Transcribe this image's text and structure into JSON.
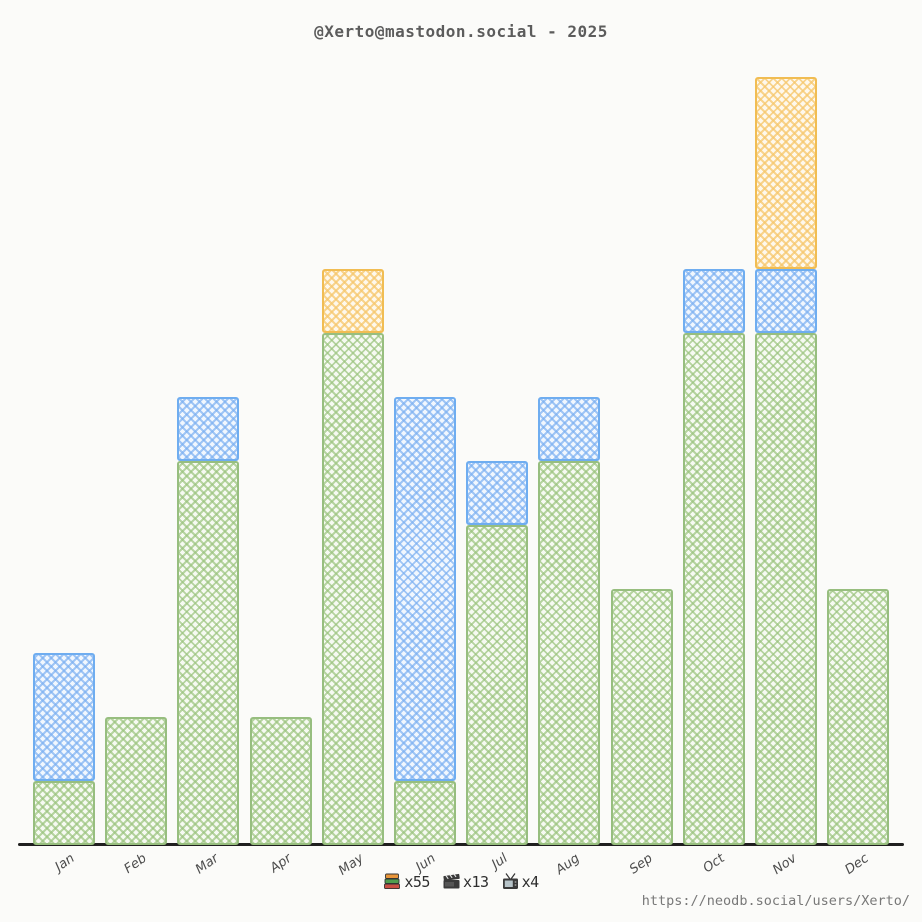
{
  "title": "@Xerto@mastodon.social - 2025",
  "footer": {
    "url": "https://neodb.social/users/Xerto/"
  },
  "legend": {
    "items": [
      {
        "icon": "books-icon",
        "label": "x55"
      },
      {
        "icon": "movie-icon",
        "label": "x13"
      },
      {
        "icon": "tv-icon",
        "label": "x4"
      }
    ]
  },
  "colors": {
    "books": "#a9cf93",
    "movies": "#88baf2",
    "tv": "#f6c76c",
    "axis": "#1f1f1f",
    "background": "#fbfbf9"
  },
  "chart_data": {
    "type": "bar",
    "stacked": true,
    "title": "@Xerto@mastodon.social - 2025",
    "categories": [
      "Jan",
      "Feb",
      "Mar",
      "Apr",
      "May",
      "Jun",
      "Jul",
      "Aug",
      "Sep",
      "Oct",
      "Nov",
      "Dec"
    ],
    "series": [
      {
        "name": "books",
        "color": "#a9cf93",
        "total": 55,
        "values": [
          1,
          2,
          6,
          2,
          8,
          1,
          5,
          6,
          4,
          8,
          8,
          4
        ]
      },
      {
        "name": "movies",
        "color": "#88baf2",
        "total": 13,
        "values": [
          2,
          0,
          1,
          0,
          0,
          6,
          1,
          1,
          0,
          1,
          1,
          0
        ]
      },
      {
        "name": "tv",
        "color": "#f6c76c",
        "total": 4,
        "values": [
          0,
          0,
          0,
          0,
          1,
          0,
          0,
          0,
          0,
          0,
          3,
          0
        ]
      }
    ],
    "xlabel": "",
    "ylabel": "",
    "ylim": [
      0,
      12
    ],
    "grid": false,
    "legend_position": "bottom",
    "style": "sketchy-hatched"
  }
}
